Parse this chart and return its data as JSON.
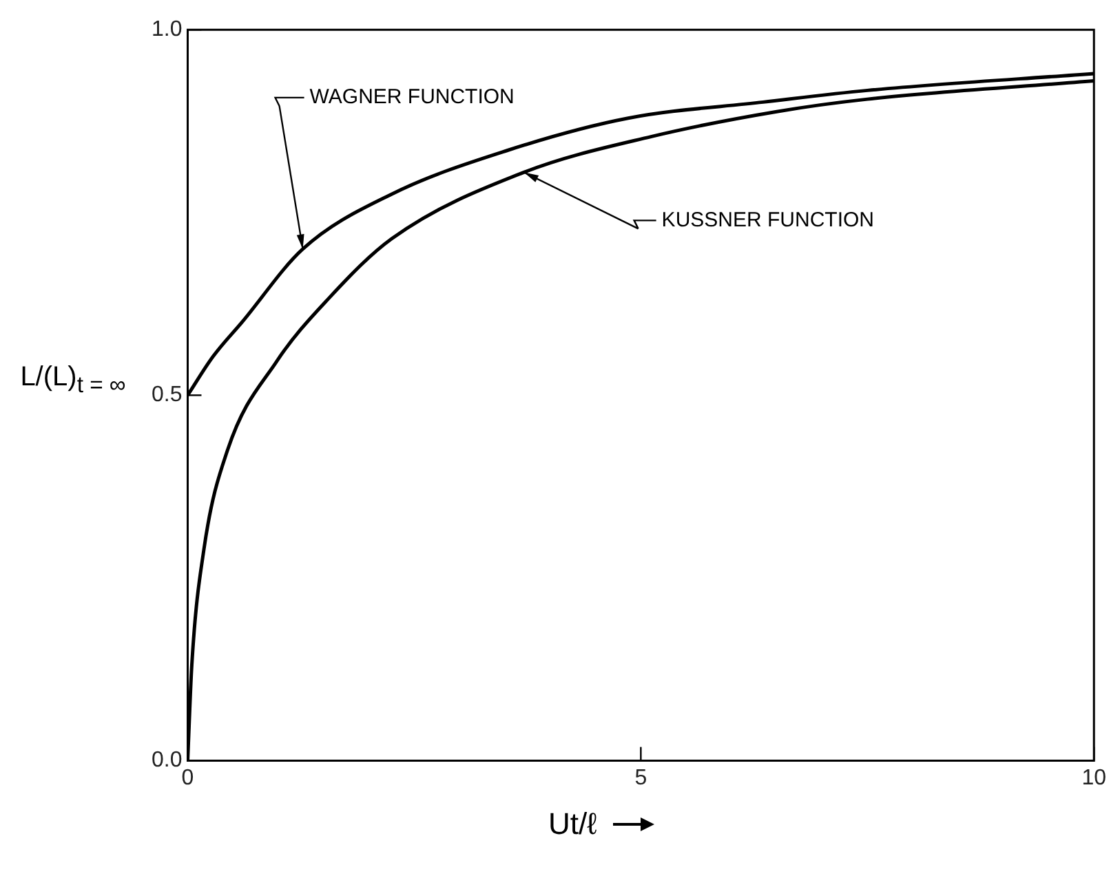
{
  "chart_data": {
    "type": "line",
    "xlabel": "Ut/ℓ",
    "ylabel": "L/(L)$_{t = ∞}$",
    "xlim": [
      0,
      10
    ],
    "ylim": [
      0,
      1
    ],
    "xticks": [
      0,
      5,
      {
        "value": 10,
        "label": "10"
      }
    ],
    "yticks": [
      {
        "value": 0,
        "label": "0.0"
      },
      {
        "value": 0.5,
        "label": "0.5"
      },
      {
        "value": 1,
        "label": "1.0"
      }
    ],
    "grid": false,
    "legend": false,
    "marker": "none",
    "line_style": "solid",
    "series": [
      {
        "color": "#000000",
        "x": [
          0,
          0.28,
          0.6,
          1.27,
          2.25,
          3.53,
          4.86,
          6.35,
          7.5,
          10
        ],
        "values": [
          0.5,
          0.553,
          0.6,
          0.7,
          0.775,
          0.835,
          0.879,
          0.901,
          0.917,
          0.94
        ]
      },
      {
        "color": "#000000",
        "x": [
          0,
          0.045,
          0.18,
          0.44,
          0.98,
          1.56,
          2.25,
          3.71,
          5.12,
          6.5,
          7.5,
          10
        ],
        "values": [
          0,
          0.13,
          0.29,
          0.425,
          0.546,
          0.633,
          0.714,
          0.805,
          0.854,
          0.888,
          0.905,
          0.93
        ]
      }
    ],
    "annotations": [
      "WAGNER FUNCTION",
      {
        "text": "KUSSNER FUNCTION",
        "x": 3.71,
        "y": 0.805
      }
    ]
  }
}
